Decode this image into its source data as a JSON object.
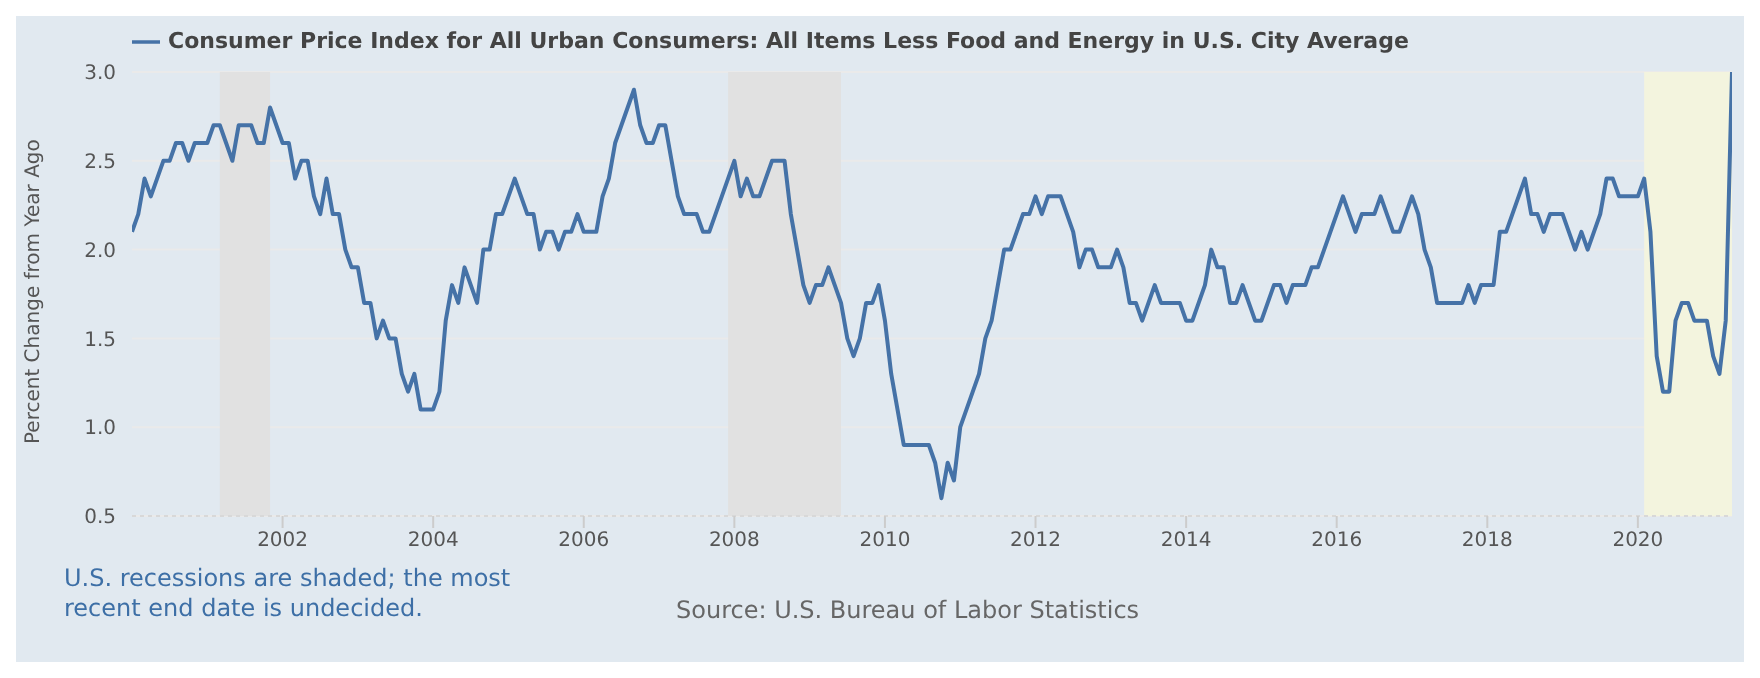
{
  "chart_data": {
    "type": "line",
    "ylabel": "Percent Change from Year Ago",
    "annotations": [
      "U.S. recessions are shaded; the most recent end date is undecided.",
      "Source: U.S. Bureau of Labor Statistics"
    ],
    "x": [
      "2000-01",
      "2000-02",
      "2000-03",
      "2000-04",
      "2000-05",
      "2000-06",
      "2000-07",
      "2000-08",
      "2000-09",
      "2000-10",
      "2000-11",
      "2000-12",
      "2001-01",
      "2001-02",
      "2001-03",
      "2001-04",
      "2001-05",
      "2001-06",
      "2001-07",
      "2001-08",
      "2001-09",
      "2001-10",
      "2001-11",
      "2001-12",
      "2002-01",
      "2002-02",
      "2002-03",
      "2002-04",
      "2002-05",
      "2002-06",
      "2002-07",
      "2002-08",
      "2002-09",
      "2002-10",
      "2002-11",
      "2002-12",
      "2003-01",
      "2003-02",
      "2003-03",
      "2003-04",
      "2003-05",
      "2003-06",
      "2003-07",
      "2003-08",
      "2003-09",
      "2003-10",
      "2003-11",
      "2003-12",
      "2004-01",
      "2004-02",
      "2004-03",
      "2004-04",
      "2004-05",
      "2004-06",
      "2004-07",
      "2004-08",
      "2004-09",
      "2004-10",
      "2004-11",
      "2004-12",
      "2005-01",
      "2005-02",
      "2005-03",
      "2005-04",
      "2005-05",
      "2005-06",
      "2005-07",
      "2005-08",
      "2005-09",
      "2005-10",
      "2005-11",
      "2005-12",
      "2006-01",
      "2006-02",
      "2006-03",
      "2006-04",
      "2006-05",
      "2006-06",
      "2006-07",
      "2006-08",
      "2006-09",
      "2006-10",
      "2006-11",
      "2006-12",
      "2007-01",
      "2007-02",
      "2007-03",
      "2007-04",
      "2007-05",
      "2007-06",
      "2007-07",
      "2007-08",
      "2007-09",
      "2007-10",
      "2007-11",
      "2007-12",
      "2008-01",
      "2008-02",
      "2008-03",
      "2008-04",
      "2008-05",
      "2008-06",
      "2008-07",
      "2008-08",
      "2008-09",
      "2008-10",
      "2008-11",
      "2008-12",
      "2009-01",
      "2009-02",
      "2009-03",
      "2009-04",
      "2009-05",
      "2009-06",
      "2009-07",
      "2009-08",
      "2009-09",
      "2009-10",
      "2009-11",
      "2009-12",
      "2010-01",
      "2010-02",
      "2010-03",
      "2010-04",
      "2010-05",
      "2010-06",
      "2010-07",
      "2010-08",
      "2010-09",
      "2010-10",
      "2010-11",
      "2010-12",
      "2011-01",
      "2011-02",
      "2011-03",
      "2011-04",
      "2011-05",
      "2011-06",
      "2011-07",
      "2011-08",
      "2011-09",
      "2011-10",
      "2011-11",
      "2011-12",
      "2012-01",
      "2012-02",
      "2012-03",
      "2012-04",
      "2012-05",
      "2012-06",
      "2012-07",
      "2012-08",
      "2012-09",
      "2012-10",
      "2012-11",
      "2012-12",
      "2013-01",
      "2013-02",
      "2013-03",
      "2013-04",
      "2013-05",
      "2013-06",
      "2013-07",
      "2013-08",
      "2013-09",
      "2013-10",
      "2013-11",
      "2013-12",
      "2014-01",
      "2014-02",
      "2014-03",
      "2014-04",
      "2014-05",
      "2014-06",
      "2014-07",
      "2014-08",
      "2014-09",
      "2014-10",
      "2014-11",
      "2014-12",
      "2015-01",
      "2015-02",
      "2015-03",
      "2015-04",
      "2015-05",
      "2015-06",
      "2015-07",
      "2015-08",
      "2015-09",
      "2015-10",
      "2015-11",
      "2015-12",
      "2016-01",
      "2016-02",
      "2016-03",
      "2016-04",
      "2016-05",
      "2016-06",
      "2016-07",
      "2016-08",
      "2016-09",
      "2016-10",
      "2016-11",
      "2016-12",
      "2017-01",
      "2017-02",
      "2017-03",
      "2017-04",
      "2017-05",
      "2017-06",
      "2017-07",
      "2017-08",
      "2017-09",
      "2017-10",
      "2017-11",
      "2017-12",
      "2018-01",
      "2018-02",
      "2018-03",
      "2018-04",
      "2018-05",
      "2018-06",
      "2018-07",
      "2018-08",
      "2018-09",
      "2018-10",
      "2018-11",
      "2018-12",
      "2019-01",
      "2019-02",
      "2019-03",
      "2019-04",
      "2019-05",
      "2019-06",
      "2019-07",
      "2019-08",
      "2019-09",
      "2019-10",
      "2019-11",
      "2019-12",
      "2020-01",
      "2020-02",
      "2020-03",
      "2020-04",
      "2020-05",
      "2020-06",
      "2020-07",
      "2020-08",
      "2020-09",
      "2020-10",
      "2020-11",
      "2020-12",
      "2021-01",
      "2021-02",
      "2021-03",
      "2021-04"
    ],
    "series": [
      {
        "name": "Consumer Price Index for All Urban Consumers: All Items Less Food and Energy in U.S. City Average",
        "color": "#4572a7",
        "values": [
          2.1,
          2.2,
          2.4,
          2.3,
          2.4,
          2.5,
          2.5,
          2.6,
          2.6,
          2.5,
          2.6,
          2.6,
          2.6,
          2.7,
          2.7,
          2.6,
          2.5,
          2.7,
          2.7,
          2.7,
          2.6,
          2.6,
          2.8,
          2.7,
          2.6,
          2.6,
          2.4,
          2.5,
          2.5,
          2.3,
          2.2,
          2.4,
          2.2,
          2.2,
          2.0,
          1.9,
          1.9,
          1.7,
          1.7,
          1.5,
          1.6,
          1.5,
          1.5,
          1.3,
          1.2,
          1.3,
          1.1,
          1.1,
          1.1,
          1.2,
          1.6,
          1.8,
          1.7,
          1.9,
          1.8,
          1.7,
          2.0,
          2.0,
          2.2,
          2.2,
          2.3,
          2.4,
          2.3,
          2.2,
          2.2,
          2.0,
          2.1,
          2.1,
          2.0,
          2.1,
          2.1,
          2.2,
          2.1,
          2.1,
          2.1,
          2.3,
          2.4,
          2.6,
          2.7,
          2.8,
          2.9,
          2.7,
          2.6,
          2.6,
          2.7,
          2.7,
          2.5,
          2.3,
          2.2,
          2.2,
          2.2,
          2.1,
          2.1,
          2.2,
          2.3,
          2.4,
          2.5,
          2.3,
          2.4,
          2.3,
          2.3,
          2.4,
          2.5,
          2.5,
          2.5,
          2.2,
          2.0,
          1.8,
          1.7,
          1.8,
          1.8,
          1.9,
          1.8,
          1.7,
          1.5,
          1.4,
          1.5,
          1.7,
          1.7,
          1.8,
          1.6,
          1.3,
          1.1,
          0.9,
          0.9,
          0.9,
          0.9,
          0.9,
          0.8,
          0.6,
          0.8,
          0.7,
          1.0,
          1.1,
          1.2,
          1.3,
          1.5,
          1.6,
          1.8,
          2.0,
          2.0,
          2.1,
          2.2,
          2.2,
          2.3,
          2.2,
          2.3,
          2.3,
          2.3,
          2.2,
          2.1,
          1.9,
          2.0,
          2.0,
          1.9,
          1.9,
          1.9,
          2.0,
          1.9,
          1.7,
          1.7,
          1.6,
          1.7,
          1.8,
          1.7,
          1.7,
          1.7,
          1.7,
          1.6,
          1.6,
          1.7,
          1.8,
          2.0,
          1.9,
          1.9,
          1.7,
          1.7,
          1.8,
          1.7,
          1.6,
          1.6,
          1.7,
          1.8,
          1.8,
          1.7,
          1.8,
          1.8,
          1.8,
          1.9,
          1.9,
          2.0,
          2.1,
          2.2,
          2.3,
          2.2,
          2.1,
          2.2,
          2.2,
          2.2,
          2.3,
          2.2,
          2.1,
          2.1,
          2.2,
          2.3,
          2.2,
          2.0,
          1.9,
          1.7,
          1.7,
          1.7,
          1.7,
          1.7,
          1.8,
          1.7,
          1.8,
          1.8,
          1.8,
          2.1,
          2.1,
          2.2,
          2.3,
          2.4,
          2.2,
          2.2,
          2.1,
          2.2,
          2.2,
          2.2,
          2.1,
          2.0,
          2.1,
          2.0,
          2.1,
          2.2,
          2.4,
          2.4,
          2.3,
          2.3,
          2.3,
          2.3,
          2.4,
          2.1,
          1.4,
          1.2,
          1.2,
          1.6,
          1.7,
          1.7,
          1.6,
          1.6,
          1.6,
          1.4,
          1.3,
          1.6,
          3.0
        ]
      }
    ],
    "xlim": [
      "2000-01",
      "2021-04"
    ],
    "xticks": [
      "2002",
      "2004",
      "2006",
      "2008",
      "2010",
      "2012",
      "2014",
      "2016",
      "2018",
      "2020"
    ],
    "ylim": [
      0.5,
      3.0
    ],
    "yticks": [
      {
        "value": 0.5,
        "label": "0.5"
      },
      {
        "value": 1.0,
        "label": "1.0"
      },
      {
        "value": 1.5,
        "label": "1.5"
      },
      {
        "value": 2.0,
        "label": "2.0"
      },
      {
        "value": 2.5,
        "label": "2.5"
      },
      {
        "value": 3.0,
        "label": "3.0"
      }
    ],
    "bands": [
      {
        "axis": "x",
        "from": "2001-03",
        "to": "2001-11",
        "color": "#e1e1e1"
      },
      {
        "axis": "x",
        "from": "2007-12",
        "to": "2009-06",
        "color": "#e1e1e1"
      },
      {
        "axis": "x",
        "from": "2020-02",
        "to": "2021-04",
        "color": "#f3f4de"
      }
    ],
    "grid": "y",
    "legend": "top left",
    "marker": "none",
    "line_style": "solid"
  }
}
